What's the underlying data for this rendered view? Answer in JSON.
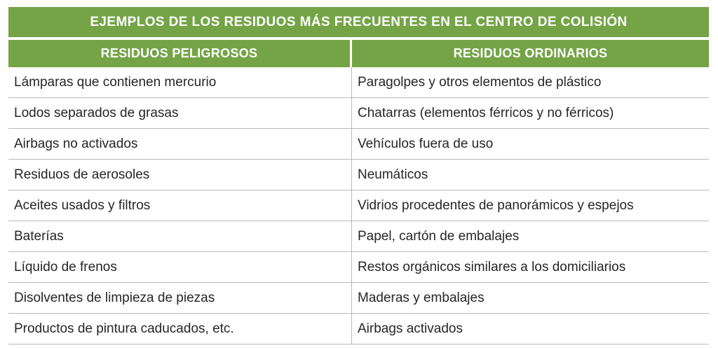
{
  "table": {
    "title": "EJEMPLOS DE LOS RESIDUOS MÁS FRECUENTES EN EL CENTRO DE COLISIÓN",
    "headers": [
      "RESIDUOS PELIGROSOS",
      "RESIDUOS ORDINARIOS"
    ],
    "rows": [
      [
        "Lámparas que contienen mercurio",
        "Paragolpes y otros elementos de plástico"
      ],
      [
        "Lodos separados de grasas",
        "Chatarras (elementos férricos y no férricos)"
      ],
      [
        "Airbags no activados",
        "Vehículos fuera de uso"
      ],
      [
        "Residuos de aerosoles",
        "Neumáticos"
      ],
      [
        "Aceites usados y filtros",
        "Vidrios procedentes de panorámicos y espejos"
      ],
      [
        "Baterías",
        "Papel, cartón de embalajes"
      ],
      [
        "Líquido de frenos",
        "Restos orgánicos similares a los domiciliarios"
      ],
      [
        "Disolventes de limpieza de piezas",
        "Maderas y embalajes"
      ],
      [
        "Productos de pintura caducados, etc.",
        "Airbags activados"
      ]
    ],
    "colors": {
      "header_bg": "#74a446",
      "header_text": "#ffffff",
      "body_text": "#262626",
      "rule": "#b9b9b9"
    }
  }
}
